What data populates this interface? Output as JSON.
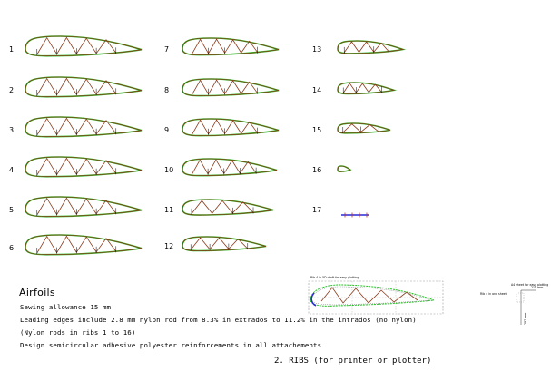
{
  "ribs": [
    {
      "number": "1"
    },
    {
      "number": "2"
    },
    {
      "number": "3"
    },
    {
      "number": "4"
    },
    {
      "number": "5"
    },
    {
      "number": "6"
    },
    {
      "number": "7"
    },
    {
      "number": "8"
    },
    {
      "number": "9"
    },
    {
      "number": "10"
    },
    {
      "number": "11"
    },
    {
      "number": "12"
    },
    {
      "number": "13"
    },
    {
      "number": "14"
    },
    {
      "number": "15"
    },
    {
      "number": "16"
    },
    {
      "number": "17"
    }
  ],
  "notes": {
    "title": "Airfoils",
    "line1": "Sewing allowance 15 mm",
    "line2": "Leading edges include 2.8 mm nylon rod from 8.3% in extrados to 11.2% in the intrados (no nylon)",
    "line3": "(Nylon rods in ribs 1 to 16)",
    "line4": "Design semicircular adhesive polyester reinforcements in all attachements"
  },
  "footer": "2. RIBS  (for printer or plotter)",
  "detail": {
    "caption": "Rib 4 in 5D draft for easy plotting",
    "tile_caption": "A4 sheet for easy plotting",
    "scale_h": "210 mm",
    "scale_v": "297 mm",
    "note": "Rib 4 in one sheet"
  },
  "colors": {
    "outline": "#8a3a1a",
    "offset": "#22c322",
    "diagonals": "#8a3a1a",
    "rod": "#2a2ad8",
    "dots": "#555555"
  }
}
